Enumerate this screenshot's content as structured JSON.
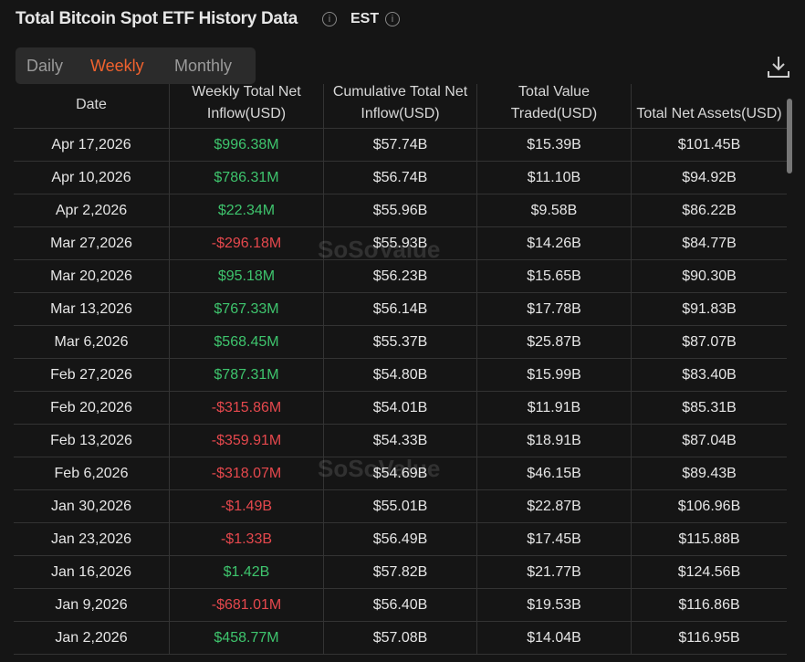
{
  "header": {
    "title": "Total Bitcoin Spot ETF History Data",
    "timezone": "EST"
  },
  "tabs": [
    "Daily",
    "Weekly",
    "Monthly"
  ],
  "active_tab": "Weekly",
  "watermark": "SoSoValue",
  "table": {
    "columns": [
      "Date",
      "Weekly Total Net Inflow(USD)",
      "Cumulative Total Net Inflow(USD)",
      "Total Value Traded(USD)",
      "Total Net Assets(USD)"
    ],
    "rows": [
      [
        "Apr 17,2026",
        "$996.38M",
        "$57.74B",
        "$15.39B",
        "$101.45B"
      ],
      [
        "Apr 10,2026",
        "$786.31M",
        "$56.74B",
        "$11.10B",
        "$94.92B"
      ],
      [
        "Apr 2,2026",
        "$22.34M",
        "$55.96B",
        "$9.58B",
        "$86.22B"
      ],
      [
        "Mar 27,2026",
        "-$296.18M",
        "$55.93B",
        "$14.26B",
        "$84.77B"
      ],
      [
        "Mar 20,2026",
        "$95.18M",
        "$56.23B",
        "$15.65B",
        "$90.30B"
      ],
      [
        "Mar 13,2026",
        "$767.33M",
        "$56.14B",
        "$17.78B",
        "$91.83B"
      ],
      [
        "Mar 6,2026",
        "$568.45M",
        "$55.37B",
        "$25.87B",
        "$87.07B"
      ],
      [
        "Feb 27,2026",
        "$787.31M",
        "$54.80B",
        "$15.99B",
        "$83.40B"
      ],
      [
        "Feb 20,2026",
        "-$315.86M",
        "$54.01B",
        "$11.91B",
        "$85.31B"
      ],
      [
        "Feb 13,2026",
        "-$359.91M",
        "$54.33B",
        "$18.91B",
        "$87.04B"
      ],
      [
        "Feb 6,2026",
        "-$318.07M",
        "$54.69B",
        "$46.15B",
        "$89.43B"
      ],
      [
        "Jan 30,2026",
        "-$1.49B",
        "$55.01B",
        "$22.87B",
        "$106.96B"
      ],
      [
        "Jan 23,2026",
        "-$1.33B",
        "$56.49B",
        "$17.45B",
        "$115.88B"
      ],
      [
        "Jan 16,2026",
        "$1.42B",
        "$57.82B",
        "$21.77B",
        "$124.56B"
      ],
      [
        "Jan 9,2026",
        "-$681.01M",
        "$56.40B",
        "$19.53B",
        "$116.86B"
      ],
      [
        "Jan 2,2026",
        "$458.77M",
        "$57.08B",
        "$14.04B",
        "$116.95B"
      ]
    ]
  }
}
